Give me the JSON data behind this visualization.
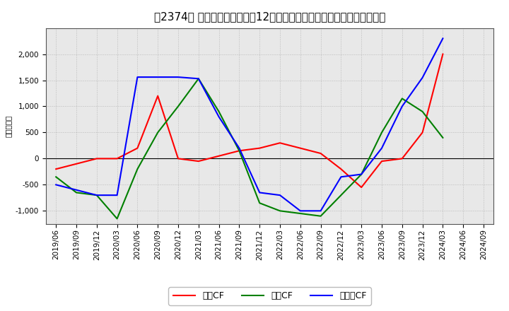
{
  "title": "【2374】 キャッシュフローの12か月移動合計の対前年同期増減額の推移",
  "ylabel": "（百万円）",
  "x_labels": [
    "2019/06",
    "2019/09",
    "2019/12",
    "2020/03",
    "2020/06",
    "2020/09",
    "2020/12",
    "2021/03",
    "2021/06",
    "2021/09",
    "2021/12",
    "2022/03",
    "2022/06",
    "2022/09",
    "2022/12",
    "2023/03",
    "2023/06",
    "2023/09",
    "2023/12",
    "2024/03",
    "2024/06",
    "2024/09"
  ],
  "ei_CF": [
    -200,
    -100,
    0,
    0,
    200,
    1200,
    0,
    -50,
    50,
    150,
    200,
    300,
    200,
    100,
    -200,
    -550,
    -50,
    0,
    500,
    2000,
    null,
    null
  ],
  "to_CF": [
    -350,
    -650,
    -700,
    -1150,
    -200,
    500,
    1000,
    1530,
    900,
    150,
    -850,
    -1000,
    -1050,
    -1100,
    -700,
    -300,
    500,
    1150,
    900,
    400,
    null,
    null
  ],
  "fr_CF": [
    -500,
    -600,
    -700,
    -700,
    1560,
    1560,
    1560,
    1530,
    800,
    200,
    -650,
    -700,
    -1000,
    -1000,
    -350,
    -300,
    200,
    1000,
    1550,
    2300,
    null,
    null
  ],
  "series_labels": [
    "営業CF",
    "投資CF",
    "フリーCF"
  ],
  "colors": [
    "#ff0000",
    "#008000",
    "#0000ff"
  ],
  "ylim": [
    -1250,
    2500
  ],
  "yticks": [
    -1000,
    -500,
    0,
    500,
    1000,
    1500,
    2000
  ],
  "bg_color": "#e8e8e8",
  "grid_color": "#999999",
  "title_fontsize": 11,
  "legend_fontsize": 9,
  "tick_fontsize": 7.5
}
